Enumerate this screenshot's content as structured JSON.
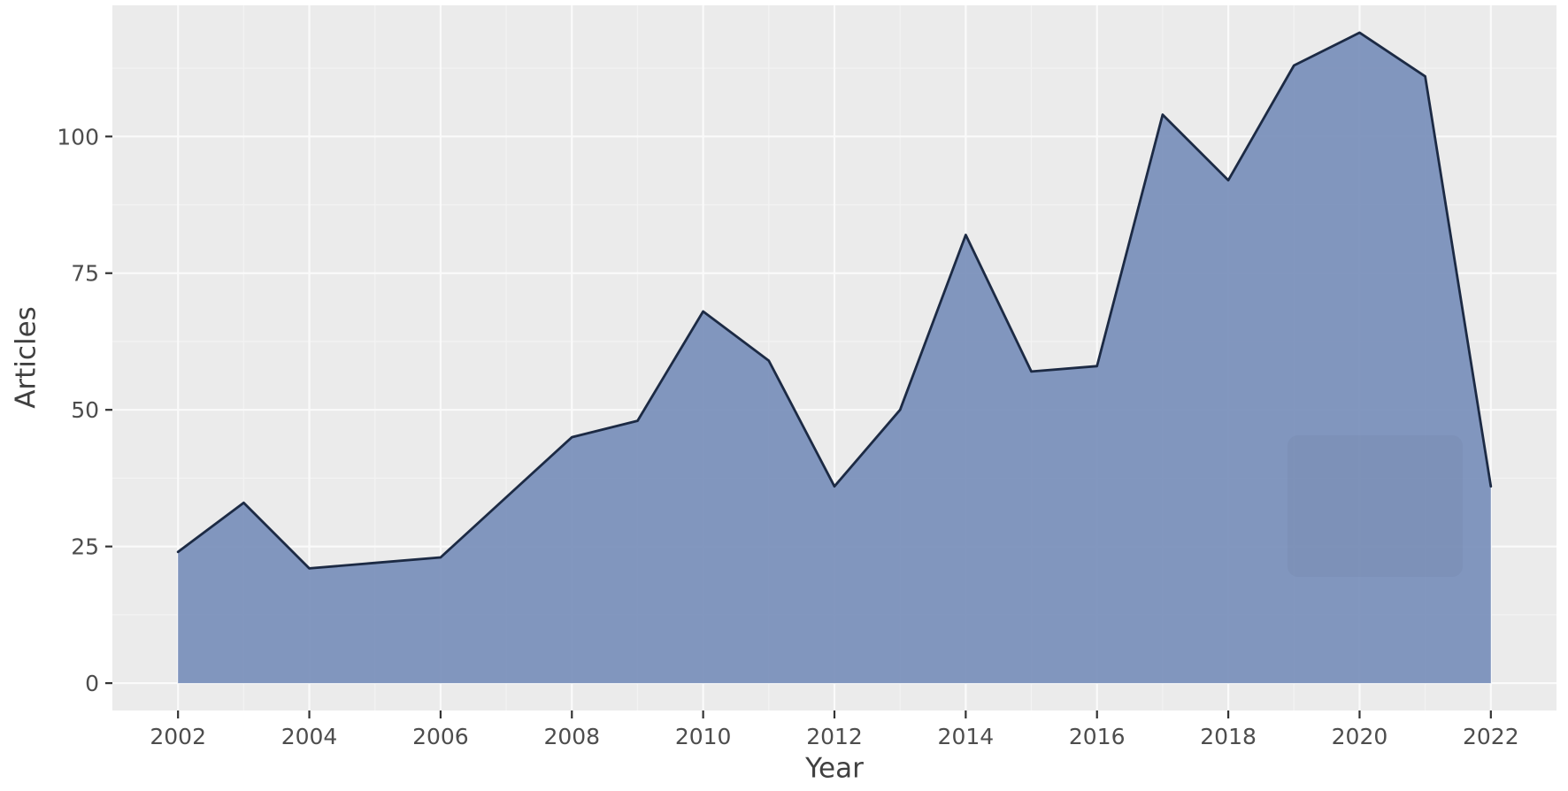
{
  "chart_data": {
    "type": "area",
    "title": "",
    "xlabel": "Year",
    "ylabel": "Articles",
    "series_name": "Articles",
    "x": [
      2002,
      2003,
      2004,
      2005,
      2006,
      2007,
      2008,
      2009,
      2010,
      2011,
      2012,
      2013,
      2014,
      2015,
      2016,
      2017,
      2018,
      2019,
      2020,
      2021,
      2022
    ],
    "values": [
      24,
      33,
      21,
      22,
      23,
      34,
      45,
      48,
      68,
      59,
      36,
      50,
      82,
      57,
      58,
      104,
      92,
      113,
      119,
      111,
      36
    ],
    "x_ticks": [
      2002,
      2004,
      2006,
      2008,
      2010,
      2012,
      2014,
      2016,
      2018,
      2020,
      2022
    ],
    "y_ticks": [
      0,
      25,
      50,
      75,
      100
    ],
    "xlim": [
      2001,
      2023
    ],
    "ylim": [
      -5,
      124
    ],
    "grid": "major and minor gridlines, white on gray panel",
    "legend_position": "none",
    "style": "ggplot-gray-panel",
    "colors": {
      "fill": "#7b91bc",
      "line": "#1c2a44",
      "panel_bg": "#ebebeb",
      "grid_major": "#fafafa",
      "grid_minor": "#f3f3f3",
      "tick_mark": "#333333",
      "tick_label": "#4d4d4d",
      "axis_title": "#404040",
      "background": "#ffffff"
    }
  }
}
